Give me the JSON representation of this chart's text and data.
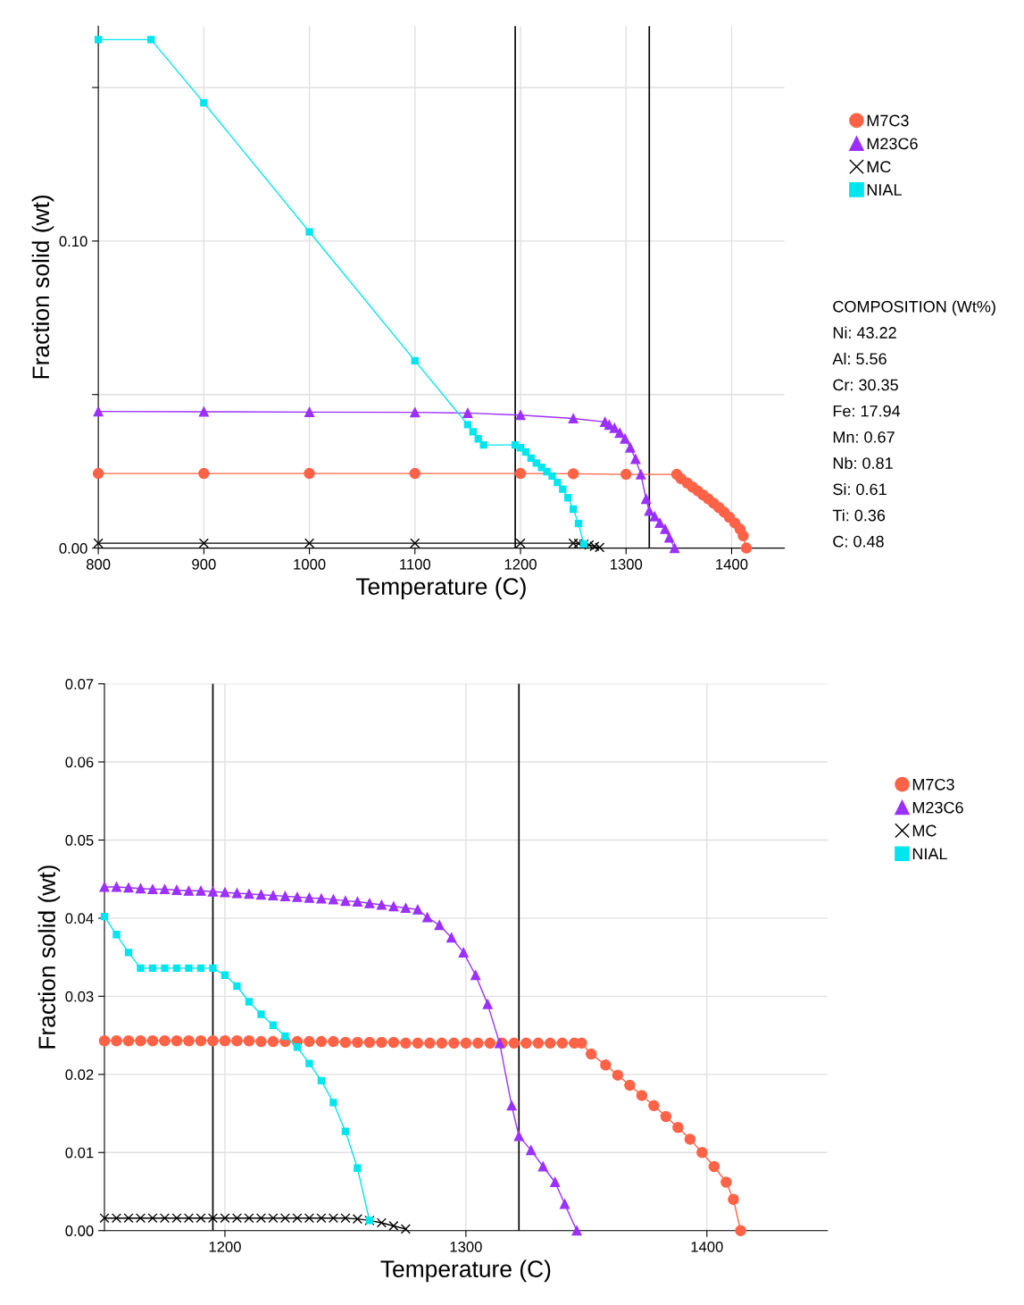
{
  "chart_data": [
    {
      "type": "line",
      "xlabel": "Temperature (C)",
      "ylabel": "Fraction solid (wt)",
      "xlim": [
        800,
        1450
      ],
      "ylim": [
        0,
        0.17
      ],
      "xticks": [
        800,
        900,
        1000,
        1100,
        1200,
        1300,
        1400
      ],
      "yticks": [
        {
          "value": 0.0,
          "label": "0.00"
        },
        {
          "value": 0.05,
          "label": null
        },
        {
          "value": 0.1,
          "label": "0.10"
        },
        {
          "value": 0.15,
          "label": null
        }
      ],
      "grid": true,
      "legend": "right",
      "line_style": "solid",
      "series": [
        {
          "name": "M7C3",
          "color": "#ff6347",
          "marker": "circle",
          "x": [
            800,
            900,
            1000,
            1100,
            1200,
            1250,
            1300,
            1348,
            1352,
            1358,
            1363,
            1368,
            1373,
            1378,
            1383,
            1388,
            1393,
            1398,
            1403,
            1408,
            1411,
            1414
          ],
          "values": [
            0.0243,
            0.0243,
            0.0243,
            0.0243,
            0.0243,
            0.0242,
            0.024,
            0.024,
            0.0226,
            0.0212,
            0.0199,
            0.0186,
            0.0173,
            0.016,
            0.0146,
            0.0132,
            0.0117,
            0.01,
            0.0082,
            0.0062,
            0.004,
            0.0
          ]
        },
        {
          "name": "M23C6",
          "color": "#9b30ff",
          "marker": "triangle",
          "x": [
            800,
            900,
            1000,
            1100,
            1150,
            1200,
            1250,
            1280,
            1284,
            1289,
            1294,
            1299,
            1304,
            1309,
            1314,
            1319,
            1322,
            1327,
            1332,
            1337,
            1341,
            1346
          ],
          "values": [
            0.0445,
            0.0444,
            0.0443,
            0.0442,
            0.044,
            0.0433,
            0.0422,
            0.0411,
            0.0401,
            0.0391,
            0.0375,
            0.0356,
            0.0327,
            0.029,
            0.024,
            0.016,
            0.0121,
            0.0103,
            0.0082,
            0.0062,
            0.0034,
            0.0
          ]
        },
        {
          "name": "MC",
          "color": "#000000",
          "marker": "cross",
          "x": [
            800,
            900,
            1000,
            1100,
            1200,
            1250,
            1255,
            1260,
            1265,
            1270,
            1275
          ],
          "values": [
            0.0016,
            0.0016,
            0.0016,
            0.0016,
            0.0016,
            0.0016,
            0.0015,
            0.0013,
            0.001,
            0.0006,
            0.0002
          ]
        },
        {
          "name": "NIAL",
          "color": "#00e5ee",
          "marker": "square",
          "x": [
            800,
            850,
            900,
            1000,
            1100,
            1150,
            1155,
            1160,
            1165,
            1195,
            1200,
            1205,
            1210,
            1215,
            1220,
            1225,
            1230,
            1235,
            1240,
            1245,
            1250,
            1255,
            1260
          ],
          "values": [
            0.1656,
            0.1656,
            0.145,
            0.103,
            0.061,
            0.0402,
            0.0379,
            0.0356,
            0.0336,
            0.0336,
            0.0327,
            0.0313,
            0.0293,
            0.0277,
            0.0263,
            0.0249,
            0.0235,
            0.0214,
            0.0192,
            0.0164,
            0.0127,
            0.008,
            0.0013
          ]
        }
      ],
      "ref_lines": [
        {
          "axis": "x",
          "value": 1195,
          "color": "#000000"
        },
        {
          "axis": "x",
          "value": 1322,
          "color": "#000000"
        }
      ],
      "annotations": [
        "COMPOSITION (Wt%)",
        "Ni: 43.22",
        "Al: 5.56",
        "Cr: 30.35",
        "Fe: 17.94",
        "Mn: 0.67",
        "Nb: 0.81",
        "Si: 0.61",
        "Ti: 0.36",
        "C: 0.48"
      ]
    },
    {
      "type": "line",
      "xlabel": "Temperature (C)",
      "ylabel": "Fraction solid (wt)",
      "xlim": [
        1150,
        1450
      ],
      "ylim": [
        0,
        0.07
      ],
      "xticks": [
        1200,
        1300,
        1400
      ],
      "yticks": [
        {
          "value": 0.0,
          "label": "0.00"
        },
        {
          "value": 0.01,
          "label": "0.01"
        },
        {
          "value": 0.02,
          "label": "0.02"
        },
        {
          "value": 0.03,
          "label": "0.03"
        },
        {
          "value": 0.04,
          "label": "0.04"
        },
        {
          "value": 0.05,
          "label": "0.05"
        },
        {
          "value": 0.06,
          "label": "0.06"
        },
        {
          "value": 0.07,
          "label": "0.07"
        }
      ],
      "grid": true,
      "legend": "right",
      "line_style": "solid",
      "series": [
        {
          "name": "M7C3",
          "color": "#ff6347",
          "marker": "circle",
          "x": [
            1150,
            1155,
            1160,
            1165,
            1170,
            1175,
            1180,
            1185,
            1190,
            1195,
            1200,
            1205,
            1210,
            1215,
            1220,
            1225,
            1230,
            1235,
            1240,
            1245,
            1250,
            1255,
            1260,
            1265,
            1270,
            1275,
            1280,
            1285,
            1290,
            1295,
            1300,
            1305,
            1310,
            1315,
            1320,
            1325,
            1330,
            1335,
            1340,
            1345,
            1348,
            1352,
            1358,
            1363,
            1368,
            1373,
            1378,
            1383,
            1388,
            1393,
            1398,
            1403,
            1408,
            1411,
            1414
          ],
          "values": [
            0.0243,
            0.0243,
            0.0243,
            0.0243,
            0.0243,
            0.0243,
            0.0243,
            0.0243,
            0.0243,
            0.0243,
            0.0243,
            0.0243,
            0.0243,
            0.0242,
            0.0242,
            0.0242,
            0.0242,
            0.0242,
            0.0242,
            0.0242,
            0.0241,
            0.0241,
            0.0241,
            0.0241,
            0.0241,
            0.024,
            0.024,
            0.024,
            0.024,
            0.024,
            0.024,
            0.024,
            0.024,
            0.024,
            0.024,
            0.024,
            0.024,
            0.024,
            0.024,
            0.024,
            0.024,
            0.0226,
            0.0212,
            0.0199,
            0.0186,
            0.0173,
            0.016,
            0.0146,
            0.0132,
            0.0117,
            0.01,
            0.0082,
            0.0062,
            0.004,
            0.0
          ]
        },
        {
          "name": "M23C6",
          "color": "#9b30ff",
          "marker": "triangle",
          "x": [
            1150,
            1155,
            1160,
            1165,
            1170,
            1175,
            1180,
            1185,
            1190,
            1195,
            1200,
            1205,
            1210,
            1215,
            1220,
            1225,
            1230,
            1235,
            1240,
            1245,
            1250,
            1255,
            1260,
            1265,
            1270,
            1275,
            1280,
            1284,
            1289,
            1294,
            1299,
            1304,
            1309,
            1314,
            1319,
            1322,
            1327,
            1332,
            1337,
            1341,
            1346
          ],
          "values": [
            0.044,
            0.044,
            0.0439,
            0.0438,
            0.0437,
            0.0437,
            0.0436,
            0.0435,
            0.0435,
            0.0434,
            0.0433,
            0.0432,
            0.0431,
            0.043,
            0.0429,
            0.0428,
            0.0427,
            0.0426,
            0.0425,
            0.0424,
            0.0422,
            0.0421,
            0.0419,
            0.0417,
            0.0415,
            0.0413,
            0.0411,
            0.0401,
            0.0391,
            0.0375,
            0.0356,
            0.0327,
            0.029,
            0.024,
            0.016,
            0.0121,
            0.0103,
            0.0082,
            0.0062,
            0.0034,
            0.0
          ]
        },
        {
          "name": "MC",
          "color": "#000000",
          "marker": "cross",
          "x": [
            1150,
            1155,
            1160,
            1165,
            1170,
            1175,
            1180,
            1185,
            1190,
            1195,
            1200,
            1205,
            1210,
            1215,
            1220,
            1225,
            1230,
            1235,
            1240,
            1245,
            1250,
            1255,
            1260,
            1265,
            1270,
            1275
          ],
          "values": [
            0.0016,
            0.0016,
            0.0016,
            0.0016,
            0.0016,
            0.0016,
            0.0016,
            0.0016,
            0.0016,
            0.0016,
            0.0016,
            0.0016,
            0.0016,
            0.0016,
            0.0016,
            0.0016,
            0.0016,
            0.0016,
            0.0016,
            0.0016,
            0.0016,
            0.0015,
            0.0013,
            0.001,
            0.0006,
            0.0002
          ]
        },
        {
          "name": "NIAL",
          "color": "#00e5ee",
          "marker": "square",
          "x": [
            1150,
            1155,
            1160,
            1165,
            1170,
            1175,
            1180,
            1185,
            1190,
            1195,
            1200,
            1205,
            1210,
            1215,
            1220,
            1225,
            1230,
            1235,
            1240,
            1245,
            1250,
            1255,
            1260
          ],
          "values": [
            0.0402,
            0.0379,
            0.0356,
            0.0336,
            0.0336,
            0.0336,
            0.0336,
            0.0336,
            0.0336,
            0.0336,
            0.0327,
            0.0313,
            0.0293,
            0.0277,
            0.0263,
            0.0249,
            0.0235,
            0.0214,
            0.0192,
            0.0164,
            0.0127,
            0.008,
            0.0013
          ]
        }
      ],
      "ref_lines": [
        {
          "axis": "x",
          "value": 1195,
          "color": "#000000"
        },
        {
          "axis": "x",
          "value": 1322,
          "color": "#000000"
        }
      ]
    }
  ]
}
